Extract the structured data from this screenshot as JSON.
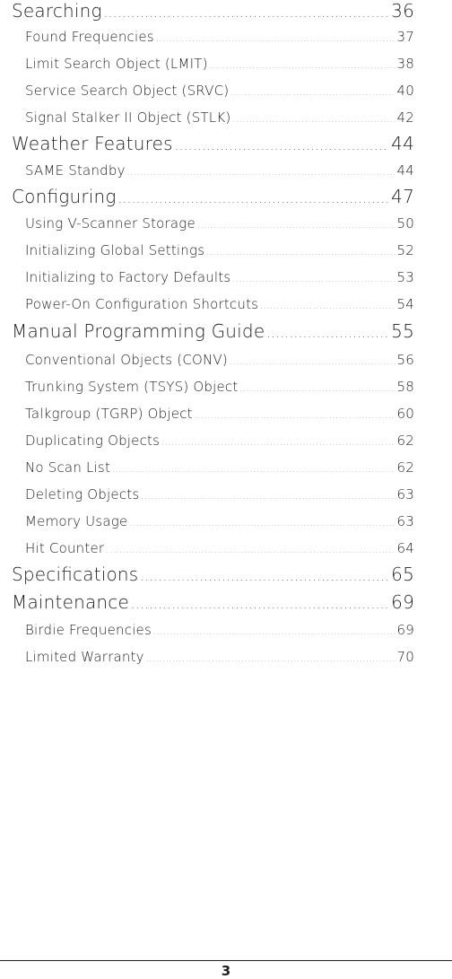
{
  "toc": [
    {
      "level": "major",
      "title": "Searching",
      "page": "36"
    },
    {
      "level": "minor",
      "title": "Found Frequencies",
      "page": "37"
    },
    {
      "level": "minor",
      "title": "Limit Search Object (LMIT)",
      "page": "38"
    },
    {
      "level": "minor",
      "title": "Service Search Object (SRVC)",
      "page": "40"
    },
    {
      "level": "minor",
      "title": "Signal Stalker II Object (STLK)",
      "page": "42"
    },
    {
      "level": "major",
      "title": "Weather Features",
      "page": "44"
    },
    {
      "level": "minor",
      "title": "SAME Standby",
      "page": "44"
    },
    {
      "level": "major",
      "title": "Conﬁguring",
      "page": "47"
    },
    {
      "level": "minor",
      "title": "Using V-Scanner Storage",
      "page": "50"
    },
    {
      "level": "minor",
      "title": "Initializing Global Settings",
      "page": "52"
    },
    {
      "level": "minor",
      "title": "Initializing to Factory Defaults",
      "page": "53"
    },
    {
      "level": "minor",
      "title": "Power-On Conﬁguration Shortcuts",
      "page": "54"
    },
    {
      "level": "major",
      "title": "Manual Programming Guide",
      "page": "55"
    },
    {
      "level": "minor",
      "title": "Conventional Objects (CONV)",
      "page": "56"
    },
    {
      "level": "minor",
      "title": "Trunking System (TSYS) Object",
      "page": "58"
    },
    {
      "level": "minor",
      "title": "Talkgroup (TGRP) Object",
      "page": "60"
    },
    {
      "level": "minor",
      "title": "Duplicating Objects",
      "page": "62"
    },
    {
      "level": "minor",
      "title": "No Scan List",
      "page": "62"
    },
    {
      "level": "minor",
      "title": "Deleting Objects",
      "page": "63"
    },
    {
      "level": "minor",
      "title": "Memory Usage",
      "page": "63"
    },
    {
      "level": "minor",
      "title": "Hit Counter",
      "page": "64"
    },
    {
      "level": "major",
      "title": "Speciﬁcations",
      "page": "65"
    },
    {
      "level": "major",
      "title": "Maintenance",
      "page": "69"
    },
    {
      "level": "minor",
      "title": "Birdie Frequencies",
      "page": "69"
    },
    {
      "level": "minor",
      "title": "Limited Warranty",
      "page": "70"
    }
  ],
  "footer": {
    "page_number": "3"
  }
}
